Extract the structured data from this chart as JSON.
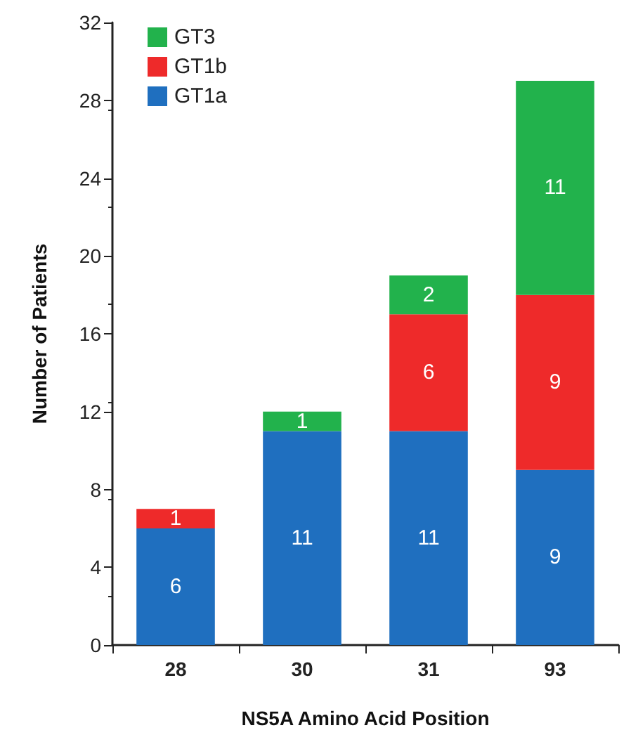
{
  "chart_data": {
    "type": "bar",
    "stacked": true,
    "xlabel": "NS5A Amino Acid Position",
    "ylabel": "Number of Patients",
    "categories": [
      "28",
      "30",
      "31",
      "93"
    ],
    "series": [
      {
        "name": "GT1a",
        "color": "#1f6fbf",
        "values": [
          6,
          11,
          11,
          9
        ],
        "value_labels": [
          "6",
          "11",
          "11",
          "9"
        ]
      },
      {
        "name": "GT1b",
        "color": "#ee2a2a",
        "values": [
          1,
          0,
          6,
          9
        ],
        "value_labels": [
          "1",
          null,
          "6",
          "9"
        ]
      },
      {
        "name": "GT3",
        "color": "#22b24c",
        "values": [
          0,
          1,
          2,
          11
        ],
        "value_labels": [
          null,
          "1",
          "2",
          "11"
        ]
      }
    ],
    "ylim": [
      0,
      32
    ],
    "yticks": [
      0,
      4,
      8,
      12,
      16,
      20,
      24,
      28,
      32
    ],
    "grid": false,
    "legend": "top left"
  }
}
